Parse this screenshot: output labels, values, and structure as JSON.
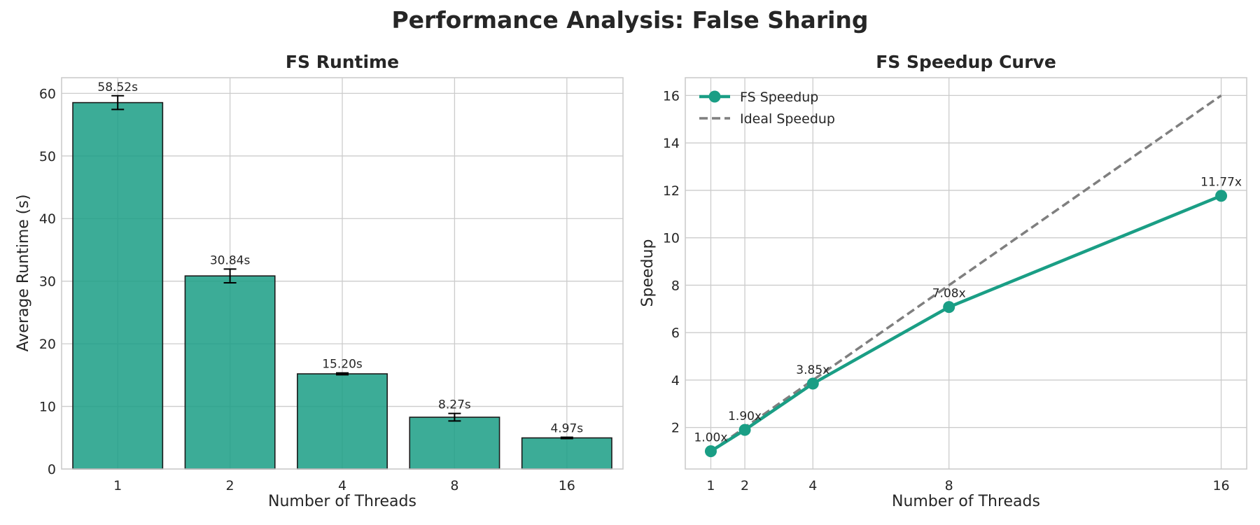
{
  "figure": {
    "title": "Performance Analysis: False Sharing"
  },
  "colors": {
    "bar": "#1a9e85",
    "bar_edge": "#1a1a1a",
    "speedup_line": "#1a9e85",
    "ideal_line": "#7f7f7f",
    "grid": "#cccccc",
    "text": "#262626"
  },
  "chart_data": [
    {
      "type": "bar",
      "title": "FS Runtime",
      "xlabel": "Number of Threads",
      "ylabel": "Average Runtime (s)",
      "categories": [
        "1",
        "2",
        "4",
        "8",
        "16"
      ],
      "values": [
        58.52,
        30.84,
        15.2,
        8.27,
        4.97
      ],
      "errors": [
        1.1,
        1.1,
        0.15,
        0.6,
        0.1
      ],
      "data_labels": [
        "58.52s",
        "30.84s",
        "15.20s",
        "8.27s",
        "4.97s"
      ],
      "ylim": [
        0,
        62.5
      ],
      "yticks": [
        0,
        10,
        20,
        30,
        40,
        50,
        60
      ],
      "grid": true
    },
    {
      "type": "line",
      "title": "FS Speedup Curve",
      "xlabel": "Number of Threads",
      "ylabel": "Speedup",
      "x": [
        1,
        2,
        4,
        8,
        16
      ],
      "xticks": [
        1,
        2,
        4,
        8,
        16
      ],
      "xlim": [
        0.25,
        16.75
      ],
      "ylim": [
        0.25,
        16.75
      ],
      "yticks": [
        2,
        4,
        6,
        8,
        10,
        12,
        14,
        16
      ],
      "series": [
        {
          "name": "FS Speedup",
          "values": [
            1.0,
            1.9,
            3.85,
            7.08,
            11.77
          ],
          "data_labels": [
            "1.00x",
            "1.90x",
            "3.85x",
            "7.08x",
            "11.77x"
          ],
          "style": "solid-markers"
        },
        {
          "name": "Ideal Speedup",
          "values": [
            1,
            2,
            4,
            8,
            16
          ],
          "style": "dashed"
        }
      ],
      "legend_position": "top-left",
      "grid": true
    }
  ]
}
